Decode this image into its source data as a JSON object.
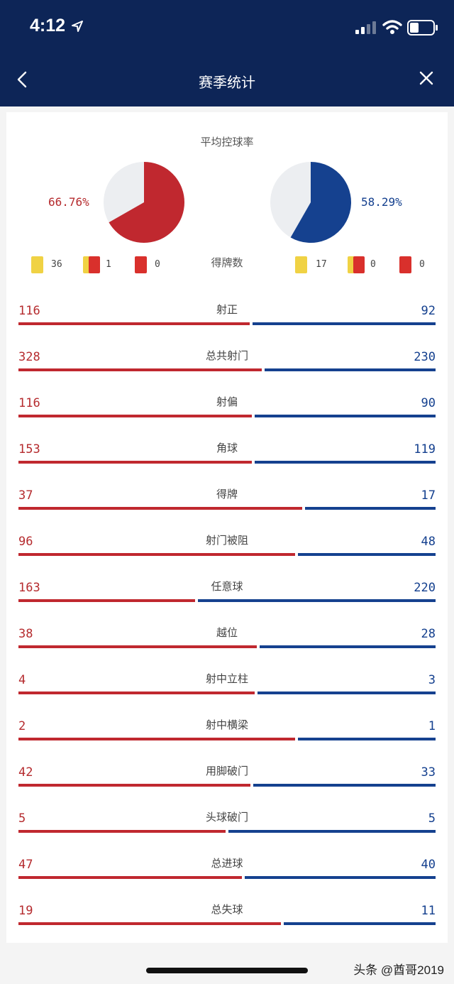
{
  "status_bar": {
    "time": "4:12"
  },
  "header": {
    "title": "赛季统计"
  },
  "possession": {
    "label": "平均控球率",
    "home_pct": "66.76%",
    "away_pct": "58.29%",
    "home_value": 66.76,
    "away_value": 58.29,
    "home_color": "#c0282f",
    "away_color": "#15418f",
    "rest_color": "#eceef1"
  },
  "cards": {
    "label": "得牌数",
    "home": {
      "yellow": "36",
      "second_yellow": "1",
      "red": "0"
    },
    "away": {
      "yellow": "17",
      "second_yellow": "0",
      "red": "0"
    }
  },
  "stats": [
    {
      "label": "射正",
      "home": "116",
      "away": "92",
      "home_ratio": 0.558
    },
    {
      "label": "总共射门",
      "home": "328",
      "away": "230",
      "home_ratio": 0.588
    },
    {
      "label": "射偏",
      "home": "116",
      "away": "90",
      "home_ratio": 0.563
    },
    {
      "label": "角球",
      "home": "153",
      "away": "119",
      "home_ratio": 0.563
    },
    {
      "label": "得牌",
      "home": "37",
      "away": "17",
      "home_ratio": 0.685
    },
    {
      "label": "射门被阻",
      "home": "96",
      "away": "48",
      "home_ratio": 0.667
    },
    {
      "label": "任意球",
      "home": "163",
      "away": "220",
      "home_ratio": 0.426
    },
    {
      "label": "越位",
      "home": "38",
      "away": "28",
      "home_ratio": 0.576
    },
    {
      "label": "射中立柱",
      "home": "4",
      "away": "3",
      "home_ratio": 0.571
    },
    {
      "label": "射中横梁",
      "home": "2",
      "away": "1",
      "home_ratio": 0.667
    },
    {
      "label": "用脚破门",
      "home": "42",
      "away": "33",
      "home_ratio": 0.56
    },
    {
      "label": "头球破门",
      "home": "5",
      "away": "5",
      "home_ratio": 0.5
    },
    {
      "label": "总进球",
      "home": "47",
      "away": "40",
      "home_ratio": 0.54
    },
    {
      "label": "总失球",
      "home": "19",
      "away": "11",
      "home_ratio": 0.633
    }
  ],
  "watermark": "头条 @酋哥2019"
}
